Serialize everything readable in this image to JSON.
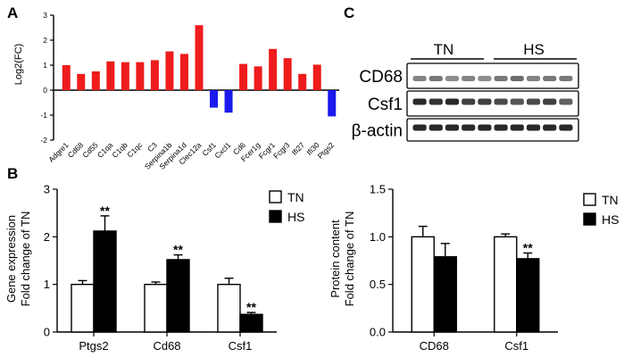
{
  "panels": {
    "a": "A",
    "b": "B",
    "c": "C"
  },
  "colors": {
    "up": "#ee1c1c",
    "down": "#1a1aee",
    "tn": "#ffffff",
    "hs": "#000000",
    "band": "#1e1e1e"
  },
  "chart_data": [
    {
      "id": "A",
      "type": "bar",
      "title": "",
      "xlabel": "",
      "ylabel": "Log2(FC)",
      "ylim": [
        -2,
        3
      ],
      "yticks": [
        "-2",
        "-1",
        "0",
        "1",
        "2",
        "3"
      ],
      "categories": [
        "Adgre1",
        "Cd68",
        "Cd55",
        "C1qa",
        "C1qb",
        "C1qc",
        "C3",
        "Serpina1b",
        "Serpina1d",
        "Clec12a",
        "Csf1",
        "Cxcl1",
        "Cd6",
        "Fcer1g",
        "Fcgr1",
        "Fcgr3",
        "Ifi27",
        "Ifi30",
        "Ptgs2"
      ],
      "values": [
        1.0,
        0.65,
        0.75,
        1.15,
        1.12,
        1.12,
        1.2,
        1.55,
        1.45,
        2.6,
        -0.7,
        -0.9,
        1.05,
        0.95,
        1.65,
        1.28,
        0.65,
        1.02,
        -1.05
      ]
    },
    {
      "id": "B",
      "type": "bar",
      "title": "",
      "xlabel": "",
      "ylabel_line1": "Gene expression",
      "ylabel_line2": "Fold change of TN",
      "ylim": [
        0,
        3
      ],
      "yticks": [
        "0",
        "1",
        "2",
        "3"
      ],
      "categories": [
        "Ptgs2",
        "Cd68",
        "Csf1"
      ],
      "series": [
        {
          "name": "TN",
          "values": [
            1.0,
            1.0,
            1.0
          ],
          "error": [
            0.08,
            0.05,
            0.13
          ]
        },
        {
          "name": "HS",
          "values": [
            2.12,
            1.52,
            0.37
          ],
          "error": [
            0.32,
            0.1,
            0.04
          ]
        }
      ],
      "significance": [
        "**",
        "**",
        "**"
      ],
      "legend": [
        "TN",
        "HS"
      ],
      "legend_position": "top-right"
    },
    {
      "id": "C-quant",
      "type": "bar",
      "title": "",
      "xlabel": "",
      "ylabel_line1": "Protein content",
      "ylabel_line2": "Fold change of TN",
      "ylim": [
        0,
        1.5
      ],
      "yticks": [
        "0.0",
        "0.5",
        "1.0",
        "1.5"
      ],
      "categories": [
        "CD68",
        "Csf1"
      ],
      "series": [
        {
          "name": "TN",
          "values": [
            1.0,
            1.0
          ],
          "error": [
            0.11,
            0.03
          ]
        },
        {
          "name": "HS",
          "values": [
            0.79,
            0.77
          ],
          "error": [
            0.14,
            0.06
          ]
        }
      ],
      "significance": [
        "",
        "**"
      ],
      "legend": [
        "TN",
        "HS"
      ],
      "legend_position": "top-right"
    }
  ],
  "western_blot": {
    "groups": [
      "TN",
      "HS"
    ],
    "proteins": [
      "CD68",
      "Csf1",
      "β-actin"
    ],
    "lanes_per_group": 5
  }
}
